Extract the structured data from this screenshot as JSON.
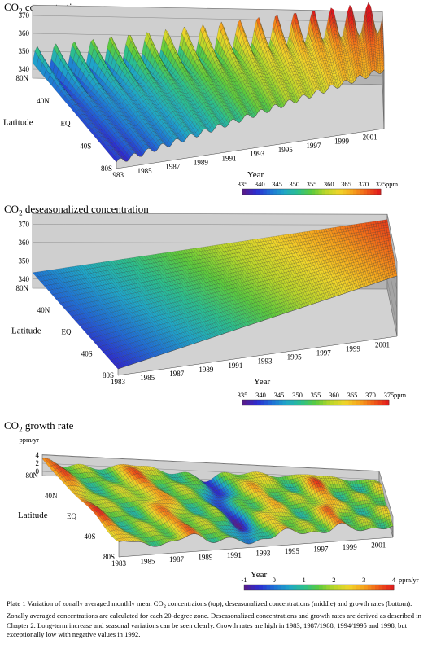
{
  "chart_data": [
    {
      "type": "surface",
      "title": {
        "pre": "CO",
        "sub": "2",
        "post": " concentration"
      },
      "z_unit": "ppm",
      "z_ticks": [
        340,
        350,
        360,
        370
      ],
      "zlim": [
        335,
        375
      ],
      "y_label": "Latitude",
      "y_ticks": [
        "80N",
        "40N",
        "EQ",
        "40S",
        "80S"
      ],
      "x_label": "Year",
      "x_ticks": [
        "1983",
        "1985",
        "1987",
        "1989",
        "1991",
        "1993",
        "1995",
        "1997",
        "1999",
        "2001"
      ],
      "x_range": [
        1983,
        2002
      ],
      "seasonal": true,
      "colorbar": {
        "ticks": [
          "335",
          "340",
          "345",
          "350",
          "355",
          "360",
          "365",
          "370",
          "375"
        ],
        "unit": "ppm"
      }
    },
    {
      "type": "surface",
      "title": {
        "pre": "CO",
        "sub": "2",
        "post": "  deseasonalized concentration"
      },
      "z_unit": "ppm",
      "z_ticks": [
        340,
        350,
        360,
        370
      ],
      "zlim": [
        335,
        375
      ],
      "y_label": "Latitude",
      "y_ticks": [
        "80N",
        "40N",
        "EQ",
        "40S",
        "80S"
      ],
      "x_label": "Year",
      "x_ticks": [
        "1983",
        "1985",
        "1987",
        "1989",
        "1991",
        "1993",
        "1995",
        "1997",
        "1999",
        "2001"
      ],
      "x_range": [
        1983,
        2002
      ],
      "seasonal": false,
      "colorbar": {
        "ticks": [
          "335",
          "340",
          "345",
          "350",
          "355",
          "360",
          "365",
          "370",
          "375"
        ],
        "unit": "ppm"
      }
    },
    {
      "type": "surface",
      "title": {
        "pre": "CO",
        "sub": "2",
        "post": " growth rate"
      },
      "z_unit": "ppm/yr",
      "z_ticks": [
        0,
        2,
        4
      ],
      "zlim": [
        -1,
        4
      ],
      "y_label": "Latitude",
      "y_ticks": [
        "80N",
        "40N",
        "EQ",
        "40S",
        "80S"
      ],
      "x_label": "Year",
      "x_ticks": [
        "1983",
        "1985",
        "1987",
        "1989",
        "1991",
        "1993",
        "1995",
        "1997",
        "1999",
        "2001"
      ],
      "x_range": [
        1983,
        2002
      ],
      "growth_peaks_years": [
        1983,
        1987.5,
        1994.5,
        1998
      ],
      "growth_low_year": 1992,
      "colorbar": {
        "ticks": [
          "-1",
          "0",
          "1",
          "2",
          "3",
          "4"
        ],
        "unit": "ppm/yr"
      }
    }
  ],
  "caption": {
    "lead": "Plate 1",
    "t1": "  Variation of zonally averaged monthly mean CO",
    "sub": "2",
    "t2": " concentraions (top), deseasonalized concentrations (middle) and growth rates (bottom).  Zonally averaged concentrations are calculated for each 20-degree zone.  Deseasonalized concentrations and growth rates are derived as described in Chapter 2.  Long-term increase and seasonal variations can be seen clearly.  Growth rates are high in 1983, 1987/1988, 1994/1995 and 1998, but exceptionally low with negative values in 1992."
  },
  "colors": {
    "scale": [
      "#5b1a87",
      "#2c2cd0",
      "#1f6fd6",
      "#1fa6c8",
      "#2bbf8e",
      "#5ccb3d",
      "#b9d62a",
      "#f0d52a",
      "#f6a21c",
      "#ef5a18",
      "#e0161c"
    ],
    "side_wall": "#b9b9b9",
    "back_wall": "#cfcfcf"
  }
}
